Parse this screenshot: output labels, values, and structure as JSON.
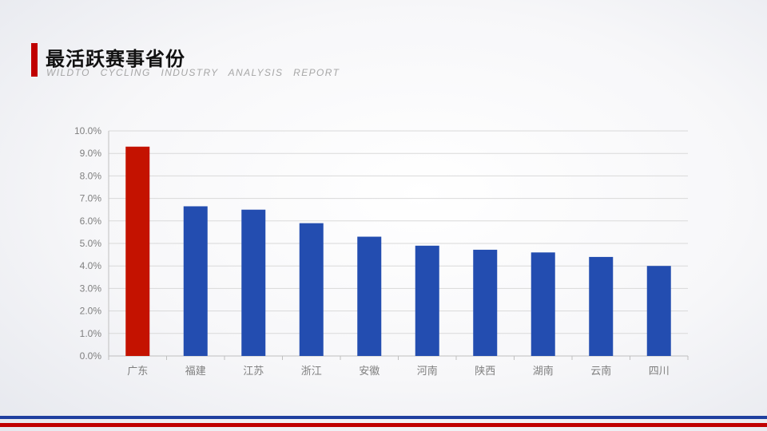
{
  "header": {
    "title": "最活跃赛事省份",
    "subtitle": "WILDTO CYCLING INDUSTRY ANALYSIS REPORT"
  },
  "colors": {
    "accent_red": "#c00000",
    "bar_highlight": "#c41200",
    "bar_default": "#234db0",
    "footer_blue": "#1f3f9f"
  },
  "chart_data": {
    "type": "bar",
    "title": "",
    "xlabel": "",
    "ylabel": "",
    "categories": [
      "广东",
      "福建",
      "江苏",
      "浙江",
      "安徽",
      "河南",
      "陕西",
      "湖南",
      "云南",
      "四川"
    ],
    "values": [
      9.3,
      6.65,
      6.5,
      5.9,
      5.3,
      4.9,
      4.72,
      4.6,
      4.4,
      4.0
    ],
    "highlight_index": 0,
    "ylim": [
      0,
      10
    ],
    "yticks": [
      "0.0%",
      "1.0%",
      "2.0%",
      "3.0%",
      "4.0%",
      "5.0%",
      "6.0%",
      "7.0%",
      "8.0%",
      "9.0%",
      "10.0%"
    ],
    "grid": true,
    "legend": "none"
  }
}
